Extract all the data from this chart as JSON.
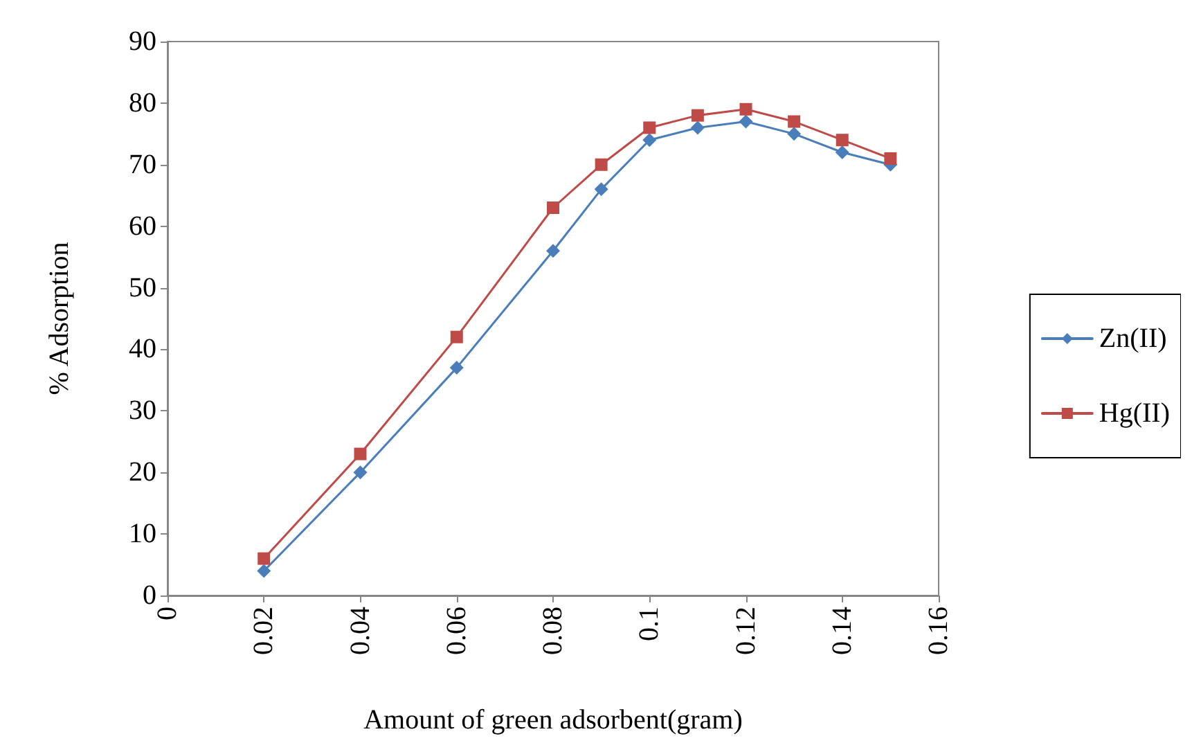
{
  "chart_data": {
    "type": "line",
    "xlabel": "Amount of green adsorbent(gram)",
    "ylabel": "% Adsorption",
    "x": [
      0.02,
      0.04,
      0.06,
      0.08,
      0.09,
      0.1,
      0.11,
      0.12,
      0.13,
      0.14,
      0.15
    ],
    "series": [
      {
        "name": "Zn(II)",
        "color": "#4a7ebb",
        "marker": "diamond",
        "values": [
          4,
          20,
          37,
          56,
          66,
          74,
          76,
          77,
          75,
          72,
          70
        ]
      },
      {
        "name": "Hg(II)",
        "color": "#be4b48",
        "marker": "square",
        "values": [
          6,
          23,
          42,
          63,
          70,
          76,
          78,
          79,
          77,
          74,
          71
        ]
      }
    ],
    "xlim": [
      0,
      0.16
    ],
    "xticks": [
      0,
      0.02,
      0.04,
      0.06,
      0.08,
      0.1,
      0.12,
      0.14,
      0.16
    ],
    "ylim": [
      0,
      90
    ],
    "yticks": [
      0,
      10,
      20,
      30,
      40,
      50,
      60,
      70,
      80,
      90
    ],
    "grid": false,
    "legend": "right",
    "line_style": "solid"
  }
}
